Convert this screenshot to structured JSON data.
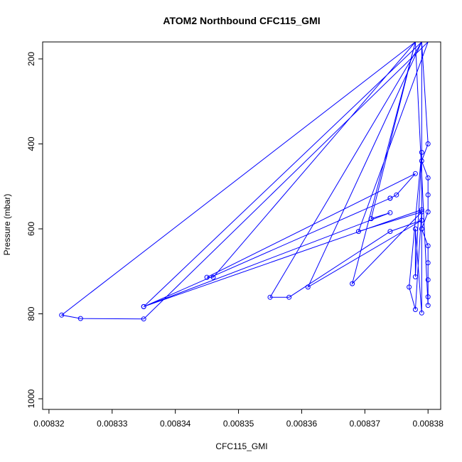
{
  "chart_data": {
    "type": "line",
    "title": "ATOM2 Northbound CFC115_GMI",
    "xlabel": "CFC115_GMI",
    "ylabel": "Pressure (mbar)",
    "xlim": [
      0.008319,
      0.008382
    ],
    "ylim": [
      1025,
      160
    ],
    "y_reversed": true,
    "x_ticks": [
      {
        "value": 0.00832,
        "label": "0.00832"
      },
      {
        "value": 0.00833,
        "label": "0.00833"
      },
      {
        "value": 0.00834,
        "label": "0.00834"
      },
      {
        "value": 0.00835,
        "label": "0.00835"
      },
      {
        "value": 0.00836,
        "label": "0.00836"
      },
      {
        "value": 0.00837,
        "label": "0.00837"
      },
      {
        "value": 0.00838,
        "label": "0.00838"
      }
    ],
    "y_ticks": [
      {
        "value": 200,
        "label": "200"
      },
      {
        "value": 400,
        "label": "400"
      },
      {
        "value": 600,
        "label": "600"
      },
      {
        "value": 800,
        "label": "800"
      },
      {
        "value": 1000,
        "label": "1000"
      }
    ],
    "grid": false,
    "legend": "none",
    "series_color": "#0000ff",
    "series": [
      {
        "points": [
          [
            0.008379,
            160
          ],
          [
            0.00838,
            400
          ],
          [
            0.008379,
            440
          ],
          [
            0.00838,
            480
          ],
          [
            0.00838,
            520
          ],
          [
            0.00838,
            560
          ],
          [
            0.008379,
            600
          ],
          [
            0.00838,
            640
          ],
          [
            0.00838,
            680
          ],
          [
            0.00838,
            720
          ],
          [
            0.00838,
            760
          ],
          [
            0.00838,
            780
          ],
          [
            0.008378,
            160
          ],
          [
            0.008322,
            803
          ],
          [
            0.008325,
            811
          ],
          [
            0.008335,
            812
          ],
          [
            0.00838,
            160
          ],
          [
            0.008379,
            160
          ],
          [
            0.008335,
            783
          ],
          [
            0.008374,
            528
          ],
          [
            0.008374,
            528
          ],
          [
            0.008375,
            520
          ],
          [
            0.008378,
            470
          ],
          [
            0.008345,
            714
          ],
          [
            0.008346,
            714
          ],
          [
            0.008378,
            160
          ],
          [
            0.008379,
            160
          ],
          [
            0.008355,
            761
          ],
          [
            0.008358,
            761
          ],
          [
            0.008374,
            606
          ],
          [
            0.008379,
            580
          ],
          [
            0.008361,
            737
          ],
          [
            0.008379,
            160
          ],
          [
            0.008378,
            160
          ],
          [
            0.008368,
            729
          ],
          [
            0.008379,
            560
          ],
          [
            0.008369,
            606
          ],
          [
            0.00838,
            160
          ],
          [
            0.008378,
            160
          ],
          [
            0.008371,
            576
          ],
          [
            0.008374,
            562
          ],
          [
            0.008335,
            783
          ],
          [
            0.008379,
            555
          ],
          [
            0.008378,
            790
          ],
          [
            0.008377,
            737
          ],
          [
            0.008379,
            420
          ],
          [
            0.008378,
            713
          ],
          [
            0.008378,
            600
          ],
          [
            0.008379,
            798
          ],
          [
            0.008379,
            160
          ]
        ]
      }
    ]
  }
}
